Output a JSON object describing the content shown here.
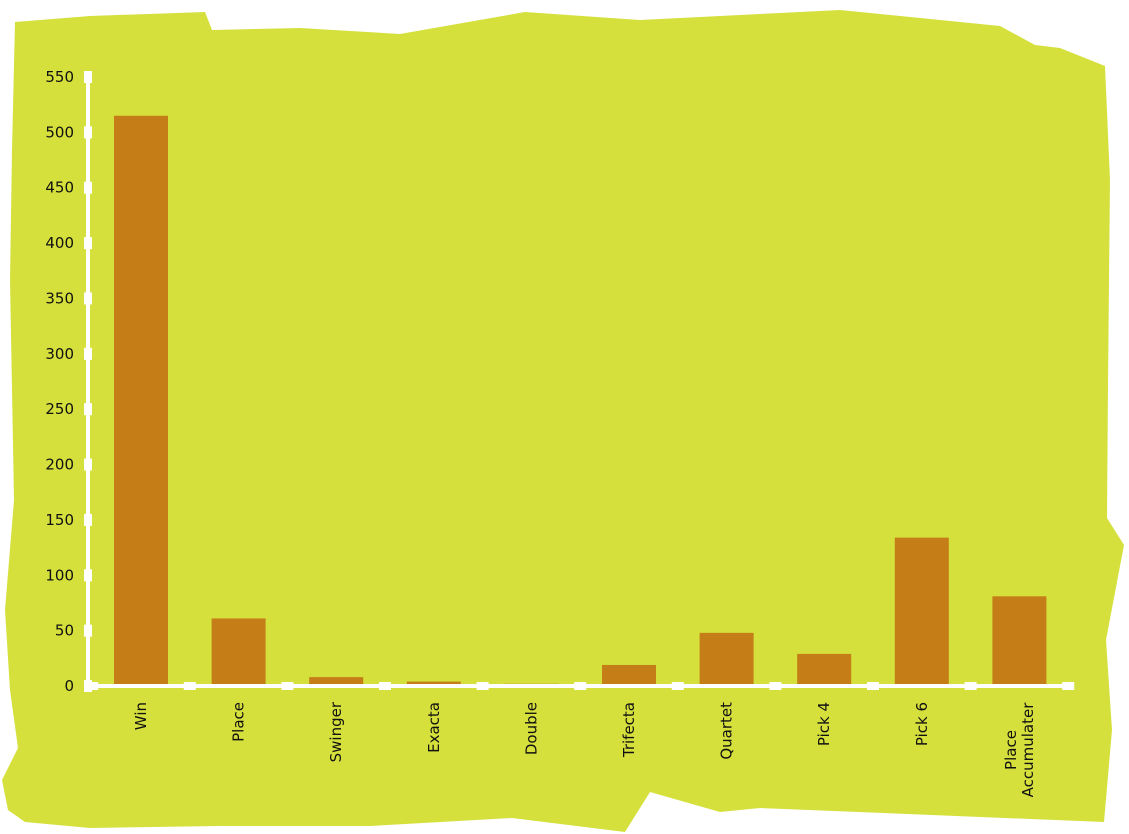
{
  "colors": {
    "background": "#d5e03c",
    "bar": "#c47d17",
    "axis": "#ffffff",
    "text": "#111111"
  },
  "chart_data": {
    "type": "bar",
    "categories": [
      "Win",
      "Place",
      "Swinger",
      "Exacta",
      "Double",
      "Trifecta",
      "Quartet",
      "Pick 4",
      "Pick 6",
      "Place Accumulater"
    ],
    "values": [
      515,
      61,
      8,
      4,
      2,
      19,
      48,
      29,
      134,
      81
    ],
    "title": "",
    "xlabel": "",
    "ylabel": "",
    "ylim": [
      0,
      550
    ],
    "yticks": [
      0,
      50,
      100,
      150,
      200,
      250,
      300,
      350,
      400,
      450,
      500,
      550
    ],
    "grid": false,
    "legend": "none"
  }
}
